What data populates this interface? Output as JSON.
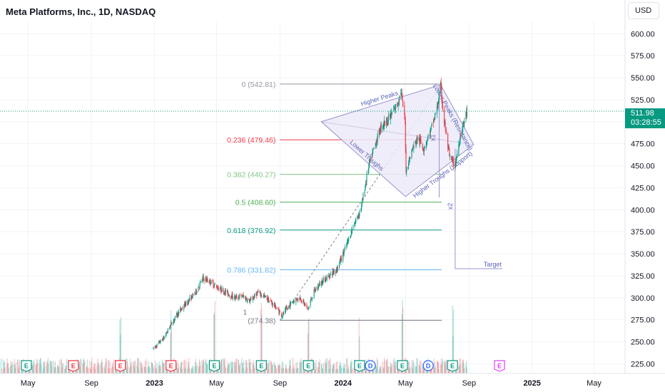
{
  "header": {
    "title": "Meta Platforms, Inc., 1D, NASDAQ",
    "currency": "USD"
  },
  "last_price": {
    "value": "511.98",
    "countdown": "03:28:55",
    "color": "#089981"
  },
  "colors": {
    "up": "#089981",
    "down": "#f23645",
    "pattern_fill": "#eceaf8",
    "pattern_line": "#9a91d0",
    "grid": "#f0f3fa",
    "axis_text": "#131722",
    "earnings": "#089981",
    "earnings_miss": "#f23645",
    "dividend": "#2962ff",
    "upcoming": "#e040fb"
  },
  "chart_data": {
    "type": "candlestick",
    "title": "Meta Platforms, Inc., 1D, NASDAQ",
    "y_axis": {
      "ticks": [
        600,
        575,
        550,
        525,
        500,
        475,
        450,
        425,
        400,
        375,
        350,
        325,
        300,
        275,
        250,
        225
      ],
      "tick_labels": [
        "600.00",
        "575.00",
        "550.00",
        "525.00",
        "500.00",
        "475.00",
        "450.00",
        "425.00",
        "400.00",
        "375.00",
        "350.00",
        "325.00",
        "300.00",
        "275.00",
        "250.00",
        "225.00"
      ],
      "range": [
        214,
        614
      ],
      "position": "right"
    },
    "x_axis": {
      "range": [
        "2022-03-08",
        "2025-06-30"
      ],
      "ticks": [
        {
          "date": "2022-05-01",
          "label": "May",
          "bold": false
        },
        {
          "date": "2022-09-01",
          "label": "Sep",
          "bold": false
        },
        {
          "date": "2023-01-01",
          "label": "2023",
          "bold": true
        },
        {
          "date": "2023-05-01",
          "label": "May",
          "bold": false
        },
        {
          "date": "2023-09-01",
          "label": "Sep",
          "bold": false
        },
        {
          "date": "2024-01-01",
          "label": "2024",
          "bold": true
        },
        {
          "date": "2024-05-01",
          "label": "May",
          "bold": false
        },
        {
          "date": "2024-09-01",
          "label": "Sep",
          "bold": false
        },
        {
          "date": "2025-01-01",
          "label": "2025",
          "bold": true
        },
        {
          "date": "2025-05-01",
          "label": "May",
          "bold": false
        }
      ]
    },
    "price_path": [
      [
        "2022-12-30",
        242
      ],
      [
        "2023-01-20",
        255
      ],
      [
        "2023-02-02",
        270
      ],
      [
        "2023-02-15",
        282
      ],
      [
        "2023-03-01",
        292
      ],
      [
        "2023-03-20",
        305
      ],
      [
        "2023-04-05",
        322
      ],
      [
        "2023-04-20",
        318
      ],
      [
        "2023-05-02",
        312
      ],
      [
        "2023-05-20",
        306
      ],
      [
        "2023-06-05",
        300
      ],
      [
        "2023-06-20",
        302
      ],
      [
        "2023-07-05",
        296
      ],
      [
        "2023-07-20",
        306
      ],
      [
        "2023-08-05",
        300
      ],
      [
        "2023-08-20",
        292
      ],
      [
        "2023-09-05",
        280
      ],
      [
        "2023-09-25",
        296
      ],
      [
        "2023-10-10",
        300
      ],
      [
        "2023-10-25",
        287
      ],
      [
        "2023-11-05",
        306
      ],
      [
        "2023-11-20",
        318
      ],
      [
        "2023-12-05",
        325
      ],
      [
        "2023-12-20",
        333
      ],
      [
        "2024-01-05",
        355
      ],
      [
        "2024-01-20",
        380
      ],
      [
        "2024-02-01",
        396
      ],
      [
        "2024-02-06",
        405
      ],
      [
        "2024-02-20",
        450
      ],
      [
        "2024-03-01",
        470
      ],
      [
        "2024-03-15",
        495
      ],
      [
        "2024-04-01",
        505
      ],
      [
        "2024-04-15",
        520
      ],
      [
        "2024-04-22",
        535
      ],
      [
        "2024-04-30",
        500
      ],
      [
        "2024-05-02",
        445
      ],
      [
        "2024-05-15",
        470
      ],
      [
        "2024-05-25",
        482
      ],
      [
        "2024-06-05",
        470
      ],
      [
        "2024-06-20",
        492
      ],
      [
        "2024-07-01",
        515
      ],
      [
        "2024-07-08",
        540
      ],
      [
        "2024-07-15",
        500
      ],
      [
        "2024-07-25",
        460
      ],
      [
        "2024-08-05",
        450
      ],
      [
        "2024-08-15",
        485
      ],
      [
        "2024-08-28",
        512
      ]
    ],
    "volume_spikes": [
      "2022-10-27",
      "2023-02-02",
      "2023-04-27",
      "2023-07-27",
      "2023-10-26",
      "2024-02-02",
      "2024-04-25",
      "2024-08-01"
    ],
    "fibonacci": [
      {
        "ratio": "0",
        "price": 542.81,
        "label": "0 (542.81)",
        "color": "#9598a1"
      },
      {
        "ratio": "0.236",
        "price": 479.46,
        "label": "0.236 (479.46)",
        "color": "#f23645"
      },
      {
        "ratio": "0.382",
        "price": 440.27,
        "label": "0.382 (440.27)",
        "color": "#81c784"
      },
      {
        "ratio": "0.5",
        "price": 408.6,
        "label": "0.5 (408.60)",
        "color": "#4caf50"
      },
      {
        "ratio": "0.618",
        "price": 376.92,
        "label": "0.618 (376.92)",
        "color": "#089981"
      },
      {
        "ratio": "0.786",
        "price": 331.82,
        "label": "0.786 (331.82)",
        "color": "#64b5f6"
      },
      {
        "ratio": "1",
        "price": 274.38,
        "label": "(274.38)",
        "color": "#787b86"
      }
    ],
    "fib_range": {
      "start": "2023-09-01",
      "end": "2024-07-10"
    },
    "fib_label_partial": "1",
    "pattern": {
      "vertices": [
        [
          "2023-11-20",
          500
        ],
        [
          "2024-07-08",
          542
        ],
        [
          "2024-09-10",
          474
        ],
        [
          "2024-05-01",
          415
        ]
      ],
      "labels": [
        "Higher Peaks",
        "Lower Peaks (Resistance)",
        "Lower Troughs",
        "Higher Troughs (Support)"
      ],
      "x1_label": "x1",
      "x2_label": "x2",
      "target_label": "Target",
      "target_price": 333
    },
    "events": [
      {
        "date": "2022-04-28",
        "type": "E",
        "kind": "earnings"
      },
      {
        "date": "2022-07-28",
        "type": "E",
        "kind": "earnings_miss"
      },
      {
        "date": "2022-10-27",
        "type": "E",
        "kind": "earnings_miss"
      },
      {
        "date": "2023-02-02",
        "type": "E",
        "kind": "earnings_miss"
      },
      {
        "date": "2023-04-27",
        "type": "E",
        "kind": "earnings"
      },
      {
        "date": "2023-07-27",
        "type": "E",
        "kind": "earnings"
      },
      {
        "date": "2023-10-26",
        "type": "E",
        "kind": "earnings"
      },
      {
        "date": "2024-02-02",
        "type": "E",
        "kind": "earnings"
      },
      {
        "date": "2024-02-23",
        "type": "D",
        "kind": "dividend"
      },
      {
        "date": "2024-04-25",
        "type": "E",
        "kind": "earnings"
      },
      {
        "date": "2024-06-14",
        "type": "D",
        "kind": "dividend"
      },
      {
        "date": "2024-07-31",
        "type": "E",
        "kind": "earnings"
      },
      {
        "date": "2024-10-30",
        "type": "E",
        "kind": "upcoming"
      }
    ]
  }
}
